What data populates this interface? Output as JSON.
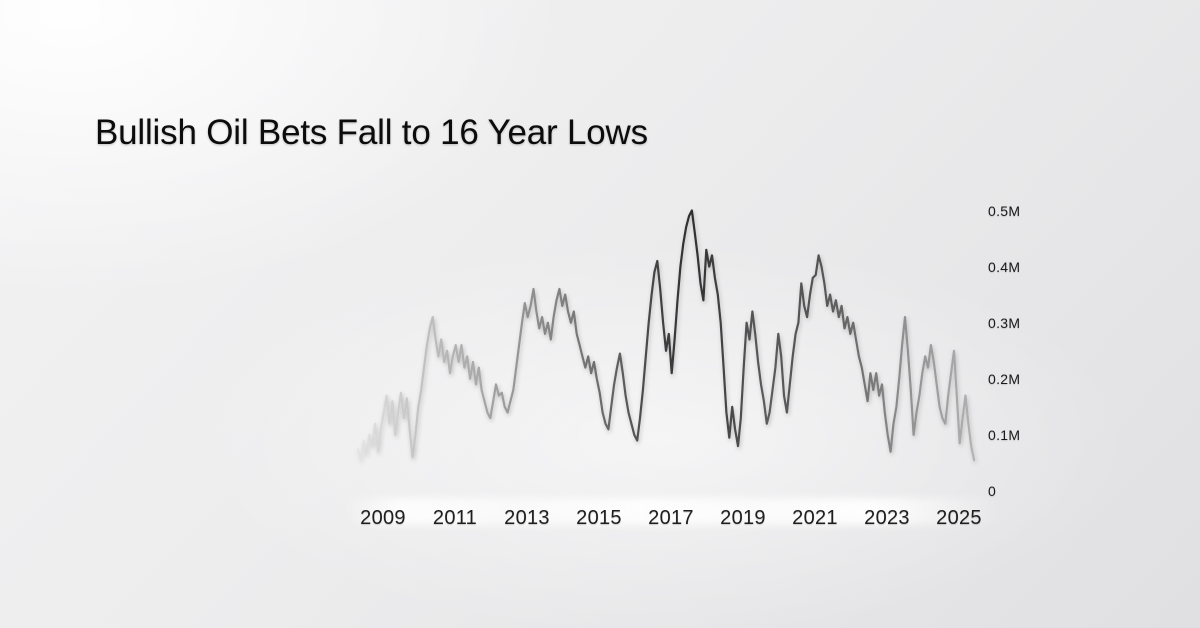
{
  "title": "Bullish Oil Bets Fall to 16 Year Lows",
  "colors": {
    "background_base": "#ededee",
    "background_shade": "#e0e0e2",
    "highlight_white": "#ffffff",
    "title_text": "#0c0c0c",
    "axis_text": "#1e1e1e",
    "line_darkest": "#2e2e2e",
    "line_lightest": "#dcdcdc"
  },
  "chart_data": {
    "type": "line",
    "title": "Bullish Oil Bets Fall to 16 Year Lows",
    "xlabel": "",
    "ylabel": "",
    "y_unit": "M",
    "y_axis_side": "right",
    "grid": false,
    "legend": "none",
    "xlim": [
      2008.1,
      2025.6
    ],
    "ylim": [
      0,
      0.55
    ],
    "x_ticks": [
      {
        "label": "2009",
        "value": 2009
      },
      {
        "label": "2011",
        "value": 2011
      },
      {
        "label": "2013",
        "value": 2013
      },
      {
        "label": "2015",
        "value": 2015
      },
      {
        "label": "2017",
        "value": 2017
      },
      {
        "label": "2019",
        "value": 2019
      },
      {
        "label": "2021",
        "value": 2021
      },
      {
        "label": "2023",
        "value": 2023
      },
      {
        "label": "2025",
        "value": 2025
      }
    ],
    "y_ticks": [
      {
        "label": "0.5M",
        "value": 0.5
      },
      {
        "label": "0.4M",
        "value": 0.4
      },
      {
        "label": "0.3M",
        "value": 0.3
      },
      {
        "label": "0.2M",
        "value": 0.2
      },
      {
        "label": "0.1M",
        "value": 0.1
      },
      {
        "label": "0",
        "value": 0
      }
    ],
    "x_start": 2008.3,
    "x_step_years": 0.08,
    "values": [
      0.075,
      0.055,
      0.09,
      0.065,
      0.1,
      0.08,
      0.12,
      0.07,
      0.11,
      0.14,
      0.17,
      0.12,
      0.16,
      0.1,
      0.14,
      0.175,
      0.13,
      0.165,
      0.11,
      0.06,
      0.1,
      0.15,
      0.18,
      0.22,
      0.26,
      0.29,
      0.31,
      0.27,
      0.24,
      0.27,
      0.23,
      0.25,
      0.21,
      0.24,
      0.26,
      0.23,
      0.26,
      0.22,
      0.24,
      0.2,
      0.23,
      0.19,
      0.22,
      0.18,
      0.16,
      0.14,
      0.13,
      0.16,
      0.19,
      0.17,
      0.175,
      0.15,
      0.14,
      0.16,
      0.18,
      0.22,
      0.26,
      0.3,
      0.335,
      0.31,
      0.33,
      0.36,
      0.32,
      0.29,
      0.31,
      0.28,
      0.3,
      0.27,
      0.31,
      0.34,
      0.36,
      0.33,
      0.35,
      0.32,
      0.3,
      0.32,
      0.28,
      0.26,
      0.24,
      0.22,
      0.24,
      0.21,
      0.23,
      0.2,
      0.175,
      0.14,
      0.12,
      0.11,
      0.15,
      0.19,
      0.22,
      0.245,
      0.21,
      0.17,
      0.14,
      0.12,
      0.1,
      0.09,
      0.13,
      0.18,
      0.24,
      0.3,
      0.35,
      0.39,
      0.41,
      0.36,
      0.3,
      0.25,
      0.28,
      0.21,
      0.27,
      0.34,
      0.4,
      0.44,
      0.47,
      0.49,
      0.5,
      0.46,
      0.42,
      0.37,
      0.34,
      0.43,
      0.4,
      0.42,
      0.38,
      0.35,
      0.3,
      0.22,
      0.14,
      0.095,
      0.15,
      0.11,
      0.08,
      0.13,
      0.22,
      0.3,
      0.27,
      0.32,
      0.28,
      0.23,
      0.19,
      0.16,
      0.12,
      0.14,
      0.18,
      0.22,
      0.28,
      0.24,
      0.17,
      0.14,
      0.19,
      0.24,
      0.28,
      0.3,
      0.37,
      0.33,
      0.31,
      0.35,
      0.38,
      0.385,
      0.42,
      0.4,
      0.37,
      0.33,
      0.35,
      0.32,
      0.34,
      0.31,
      0.33,
      0.29,
      0.31,
      0.28,
      0.3,
      0.27,
      0.24,
      0.22,
      0.19,
      0.16,
      0.21,
      0.18,
      0.21,
      0.17,
      0.19,
      0.14,
      0.1,
      0.07,
      0.12,
      0.15,
      0.2,
      0.26,
      0.31,
      0.25,
      0.18,
      0.1,
      0.14,
      0.17,
      0.21,
      0.24,
      0.22,
      0.26,
      0.23,
      0.19,
      0.15,
      0.13,
      0.12,
      0.17,
      0.21,
      0.25,
      0.17,
      0.085,
      0.13,
      0.17,
      0.12,
      0.08,
      0.055
    ],
    "line_gradient": [
      {
        "offset": 0.0,
        "color": "#dcdcdc",
        "opacity": 0.35
      },
      {
        "offset": 0.04,
        "color": "#d2d2d2",
        "opacity": 0.75
      },
      {
        "offset": 0.1,
        "color": "#c4c4c4",
        "opacity": 1
      },
      {
        "offset": 0.2,
        "color": "#a8a8a8",
        "opacity": 1
      },
      {
        "offset": 0.3,
        "color": "#8a8a8a",
        "opacity": 1
      },
      {
        "offset": 0.4,
        "color": "#6a6a6a",
        "opacity": 1
      },
      {
        "offset": 0.48,
        "color": "#454545",
        "opacity": 1
      },
      {
        "offset": 0.54,
        "color": "#2e2e2e",
        "opacity": 1
      },
      {
        "offset": 0.6,
        "color": "#474747",
        "opacity": 1
      },
      {
        "offset": 0.66,
        "color": "#5c5c5c",
        "opacity": 1
      },
      {
        "offset": 0.74,
        "color": "#515151",
        "opacity": 1
      },
      {
        "offset": 0.81,
        "color": "#707070",
        "opacity": 1
      },
      {
        "offset": 0.88,
        "color": "#8f8f8f",
        "opacity": 1
      },
      {
        "offset": 0.95,
        "color": "#a2a2a2",
        "opacity": 1
      },
      {
        "offset": 1.0,
        "color": "#b0b0b0",
        "opacity": 0.9
      }
    ]
  }
}
